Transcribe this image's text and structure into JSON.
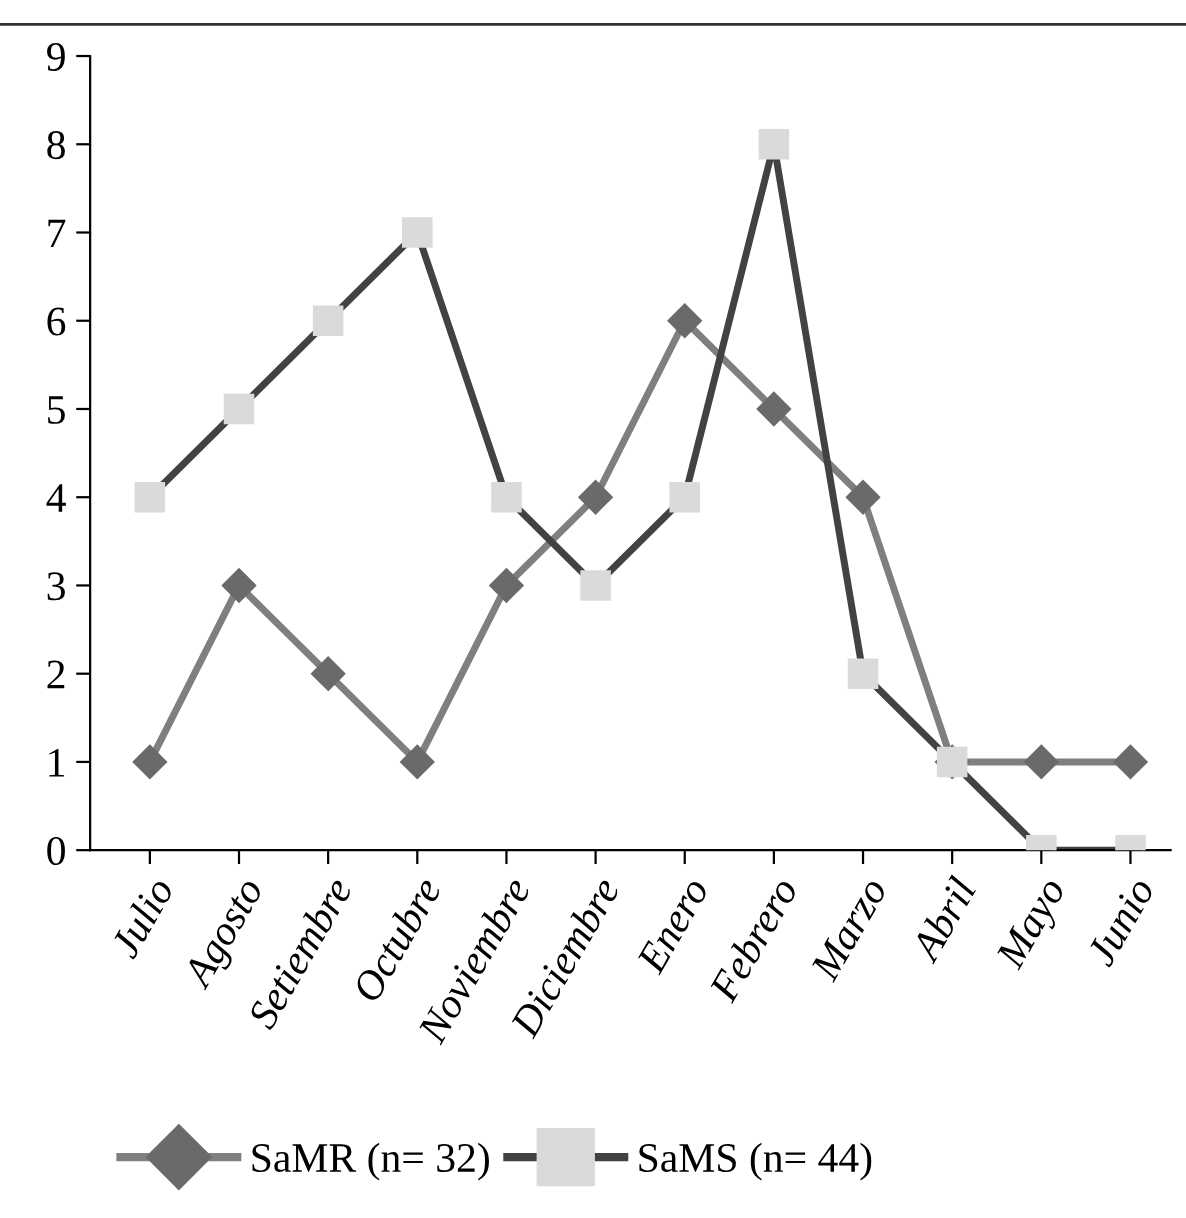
{
  "chart_data": {
    "type": "line",
    "categories": [
      "Julio",
      "Agosto",
      "Setiembre",
      "Octubre",
      "Noviembre",
      "Diciembre",
      "Enero",
      "Febrero",
      "Marzo",
      "Abril",
      "Mayo",
      "Junio"
    ],
    "series": [
      {
        "name": "SaMR (n= 32)",
        "color": "#7f7f7f",
        "marker": "diamond",
        "colors": [
          "#6a6a6a",
          "#6a6a6a",
          "#6a6a6a",
          "#6a6a6a",
          "#6a6a6a",
          "#6a6a6a",
          "#6a6a6a",
          "#6a6a6a",
          "#6a6a6a",
          "#6a6a6a",
          "#6a6a6a",
          "#6a6a6a"
        ],
        "values": [
          1,
          3,
          2,
          1,
          3,
          4,
          6,
          5,
          4,
          1,
          1,
          1
        ]
      },
      {
        "name": "SaMS (n= 44)",
        "color": "#424242",
        "marker": "square",
        "colors": [
          "#dadada",
          "#dadada",
          "#dadada",
          "#dadada",
          "#dadada",
          "#dadada",
          "#dadada",
          "#dadada",
          "#dadada",
          "#dadada",
          "#dadada",
          "#dadada"
        ],
        "values": [
          4,
          5,
          6,
          7,
          4,
          3,
          4,
          8,
          2,
          1,
          0,
          0
        ]
      }
    ],
    "ylim": [
      0,
      9
    ],
    "yticks": [
      0,
      1,
      2,
      3,
      4,
      5,
      6,
      7,
      8,
      9
    ],
    "grid": false,
    "legend": "bottom",
    "line_style": "solid"
  }
}
